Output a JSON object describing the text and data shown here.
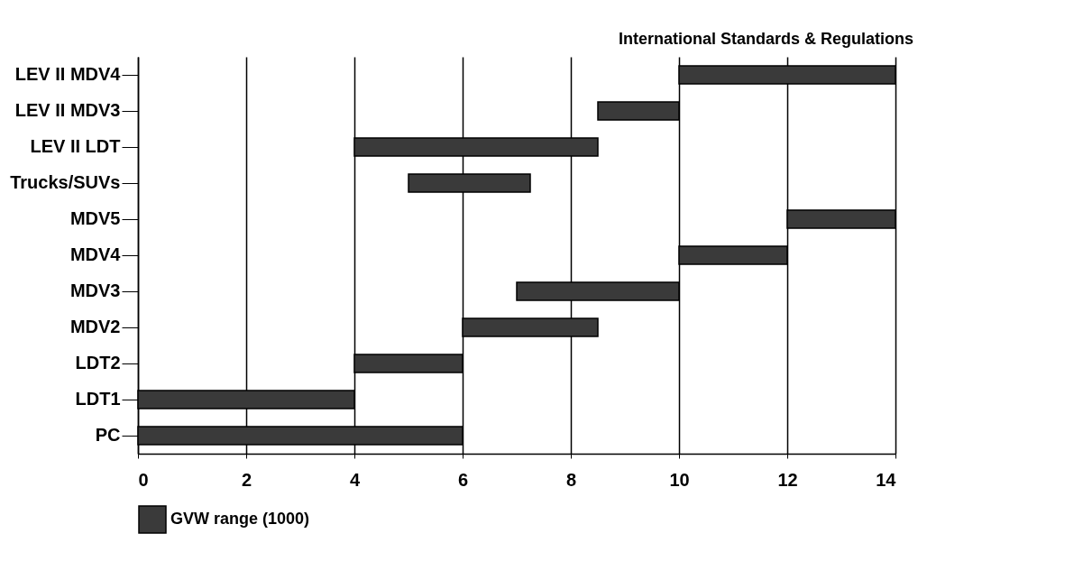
{
  "chart_data": {
    "type": "bar",
    "orientation": "horizontal",
    "categories": [
      "LEV II MDV4",
      "LEV II MDV3",
      "LEV II LDT",
      "Trucks/SUVs",
      "MDV5",
      "MDV4",
      "MDV3",
      "MDV2",
      "LDT2",
      "LDT1",
      "PC"
    ],
    "series": [
      {
        "name": "GVW range (1000)",
        "color": "#3a3a3a",
        "base": [
          10,
          8.5,
          4,
          5,
          12,
          10,
          7,
          6,
          4,
          0,
          0
        ],
        "values": [
          4,
          1.5,
          4.5,
          2.25,
          2,
          2,
          3,
          2.5,
          2,
          4,
          6
        ]
      }
    ],
    "xlim": [
      0,
      14
    ],
    "xticks": [
      0,
      2,
      4,
      6,
      8,
      10,
      12,
      14
    ],
    "grid": "x",
    "legend": "bottom",
    "annotations": [
      "International Standards & Regulations"
    ]
  }
}
